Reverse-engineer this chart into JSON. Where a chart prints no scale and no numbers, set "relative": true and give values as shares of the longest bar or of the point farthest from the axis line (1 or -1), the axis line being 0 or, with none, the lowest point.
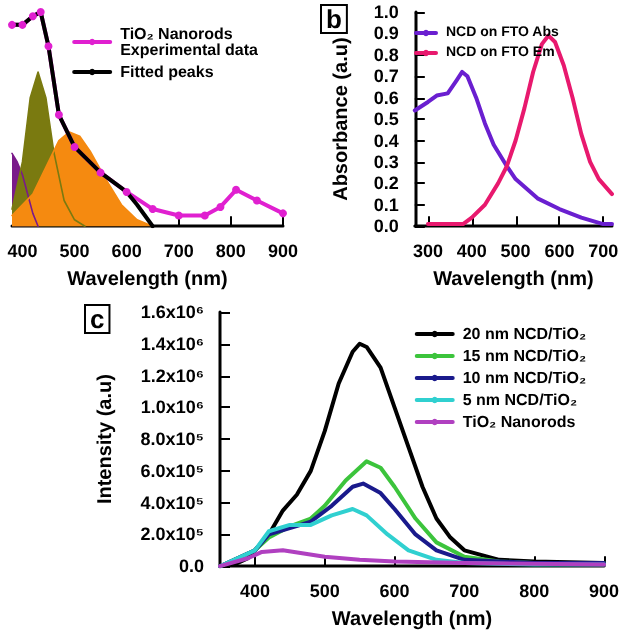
{
  "chart_data": [
    {
      "type": "line",
      "relative": true,
      "xlabel": "Wavelength (nm)",
      "xlim": [
        380,
        900
      ],
      "xticks": [
        400,
        500,
        600,
        700,
        800,
        900
      ],
      "legend": "top right",
      "grid": false,
      "series": [
        {
          "type": "area",
          "color": "#7a1a8a",
          "x": [
            380,
            390,
            400,
            410,
            420,
            430
          ],
          "values": [
            0.34,
            0.3,
            0.24,
            0.15,
            0.06,
            0
          ]
        },
        {
          "type": "area",
          "color": "#7a7a10",
          "x": [
            380,
            400,
            415,
            430,
            445,
            460,
            480,
            500,
            520
          ],
          "values": [
            0.08,
            0.3,
            0.6,
            0.72,
            0.6,
            0.35,
            0.12,
            0.03,
            0
          ]
        },
        {
          "type": "area",
          "color": "#f58a10",
          "x": [
            380,
            420,
            450,
            470,
            490,
            510,
            530,
            560,
            590,
            620,
            650
          ],
          "values": [
            0.05,
            0.15,
            0.3,
            0.4,
            0.44,
            0.42,
            0.35,
            0.22,
            0.1,
            0.03,
            0
          ]
        },
        {
          "name": "TiO₂ Nanorods\nExperimental data",
          "color": "#e020d0",
          "marker": "circle",
          "x": [
            380,
            400,
            420,
            435,
            450,
            470,
            500,
            550,
            600,
            650,
            700,
            750,
            780,
            810,
            850,
            900
          ],
          "values": [
            0.94,
            0.94,
            0.98,
            1,
            0.84,
            0.52,
            0.37,
            0.25,
            0.16,
            0.08,
            0.05,
            0.05,
            0.09,
            0.17,
            0.12,
            0.06
          ]
        },
        {
          "name": "Fitted peaks",
          "color": "#000000",
          "x": [
            380,
            400,
            420,
            435,
            450,
            470,
            500,
            550,
            600,
            620,
            650
          ],
          "values": [
            0.94,
            0.94,
            0.98,
            1,
            0.84,
            0.52,
            0.37,
            0.25,
            0.16,
            0.1,
            0
          ]
        }
      ]
    },
    {
      "type": "line",
      "xlabel": "Wavelength (nm)",
      "ylabel": "Absorbance (a.u)",
      "annotations": [
        "b"
      ],
      "xlim": [
        270,
        720
      ],
      "xticks": [
        300,
        400,
        500,
        600,
        700
      ],
      "ylim": [
        0,
        1
      ],
      "yticks": [
        {
          "value": 0,
          "label": "0.0"
        },
        0.1,
        0.2,
        0.3,
        0.4,
        0.5,
        0.6,
        0.7,
        0.8,
        0.9,
        {
          "value": 1,
          "label": "1.0"
        }
      ],
      "legend": "top left",
      "grid": false,
      "series": [
        {
          "name": "NCD on FTO Abs",
          "color": "#6a1fd0",
          "x": [
            270,
            300,
            320,
            345,
            365,
            378,
            390,
            410,
            430,
            450,
            480,
            500,
            550,
            600,
            650,
            700,
            720
          ],
          "values": [
            0.54,
            0.58,
            0.61,
            0.62,
            0.68,
            0.72,
            0.7,
            0.6,
            0.48,
            0.38,
            0.28,
            0.22,
            0.13,
            0.08,
            0.04,
            0.01,
            0.01
          ]
        },
        {
          "name": "NCD on FTO Em",
          "color": "#e8196e",
          "x": [
            300,
            350,
            380,
            400,
            430,
            460,
            480,
            500,
            520,
            540,
            560,
            575,
            590,
            610,
            630,
            650,
            670,
            690,
            720
          ],
          "values": [
            0.01,
            0.01,
            0.01,
            0.04,
            0.1,
            0.2,
            0.28,
            0.4,
            0.55,
            0.72,
            0.85,
            0.89,
            0.86,
            0.75,
            0.6,
            0.43,
            0.3,
            0.22,
            0.15
          ]
        }
      ]
    },
    {
      "type": "line",
      "xlabel": "Wavelength (nm)",
      "ylabel": "Intensity (a.u)",
      "annotations": [
        "c"
      ],
      "xlim": [
        350,
        900
      ],
      "xticks": [
        400,
        500,
        600,
        700,
        800,
        900
      ],
      "ylim": [
        0,
        1600000
      ],
      "yticks": [
        {
          "value": 0,
          "label": "0.0"
        },
        {
          "value": 200000,
          "label": "2.0x10⁵"
        },
        {
          "value": 400000,
          "label": "4.0x10⁵"
        },
        {
          "value": 600000,
          "label": "6.0x10⁵"
        },
        {
          "value": 800000,
          "label": "8.0x10⁵"
        },
        {
          "value": 1000000,
          "label": "1.0x10⁶"
        },
        {
          "value": 1200000,
          "label": "1.2x10⁶"
        },
        {
          "value": 1400000,
          "label": "1.4x10⁶"
        },
        {
          "value": 1600000,
          "label": "1.6x10⁶"
        }
      ],
      "legend": "top right",
      "grid": false,
      "series": [
        {
          "name": "20 nm NCD/TiO₂",
          "color": "#000000",
          "x": [
            350,
            370,
            390,
            400,
            420,
            440,
            460,
            480,
            500,
            520,
            540,
            550,
            560,
            580,
            600,
            620,
            640,
            660,
            680,
            700,
            750,
            800,
            900
          ],
          "values": [
            0,
            10000,
            50000,
            100000,
            200000,
            350000,
            450000,
            600000,
            850000,
            1150000,
            1350000,
            1400000,
            1380000,
            1250000,
            1000000,
            750000,
            500000,
            300000,
            180000,
            100000,
            40000,
            30000,
            20000
          ]
        },
        {
          "name": "15 nm NCD/TiO₂",
          "color": "#3cc43c",
          "x": [
            350,
            400,
            420,
            450,
            480,
            500,
            530,
            560,
            580,
            600,
            630,
            660,
            700,
            750,
            800,
            900
          ],
          "values": [
            0,
            100000,
            180000,
            250000,
            300000,
            380000,
            540000,
            660000,
            620000,
            500000,
            300000,
            150000,
            60000,
            30000,
            20000,
            20000
          ]
        },
        {
          "name": "10 nm NCD/TiO₂",
          "color": "#1a1a8c",
          "x": [
            350,
            400,
            420,
            450,
            480,
            510,
            540,
            555,
            580,
            600,
            630,
            660,
            700,
            800,
            900
          ],
          "values": [
            0,
            100000,
            200000,
            240000,
            280000,
            380000,
            500000,
            520000,
            460000,
            360000,
            200000,
            100000,
            40000,
            20000,
            20000
          ]
        },
        {
          "name": "5 nm NCD/TiO₂",
          "color": "#30d0d0",
          "x": [
            350,
            400,
            420,
            450,
            480,
            510,
            540,
            560,
            590,
            620,
            660,
            700,
            800,
            900
          ],
          "values": [
            0,
            100000,
            220000,
            260000,
            260000,
            320000,
            360000,
            320000,
            200000,
            100000,
            40000,
            20000,
            10000,
            10000
          ]
        },
        {
          "name": "TiO₂ Nanorods",
          "color": "#b040c0",
          "x": [
            350,
            390,
            410,
            440,
            470,
            500,
            550,
            600,
            700,
            900
          ],
          "values": [
            0,
            50000,
            90000,
            100000,
            80000,
            60000,
            40000,
            30000,
            20000,
            10000
          ]
        }
      ]
    }
  ]
}
